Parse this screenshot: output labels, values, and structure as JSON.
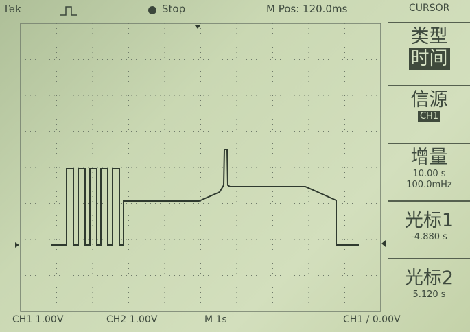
{
  "header": {
    "brand": "Tek",
    "status": "Stop",
    "position": "M Pos: 120.0ms",
    "menu_title": "CURSOR"
  },
  "menu": [
    {
      "label": "类型",
      "value": "时间"
    },
    {
      "label": "信源",
      "value": "CH1"
    },
    {
      "label": "增量",
      "values": [
        "10.00 s",
        "100.0mHz"
      ]
    },
    {
      "label": "光标1",
      "value": "-4.880 s"
    },
    {
      "label": "光标2",
      "value": "5.120 s"
    }
  ],
  "footer": {
    "ch1": "CH1 1.00V",
    "ch2": "CH2 1.00V",
    "timebase": "M 1s",
    "trigger": "CH1 / 0.00V"
  }
}
